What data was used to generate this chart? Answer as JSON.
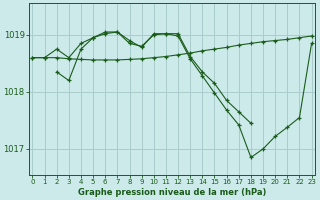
{
  "title": "Graphe pression niveau de la mer (hPa)",
  "bg_color": "#cceaea",
  "grid_color": "#aacccc",
  "line_color": "#1a5c1a",
  "x_ticks": [
    0,
    1,
    2,
    3,
    4,
    5,
    6,
    7,
    8,
    9,
    10,
    11,
    12,
    13,
    14,
    15,
    16,
    17,
    18,
    19,
    20,
    21,
    22,
    23
  ],
  "y_ticks": [
    1017,
    1018,
    1019
  ],
  "ylim": [
    1016.55,
    1019.55
  ],
  "xlim": [
    -0.3,
    23.3
  ],
  "series1_x": [
    0,
    1,
    2,
    3,
    4,
    5,
    6,
    7,
    8,
    9,
    10,
    11,
    12,
    13,
    14,
    15,
    16,
    17,
    18
  ],
  "series1_y": [
    1018.6,
    1018.6,
    1018.75,
    1018.6,
    1018.85,
    1018.95,
    1019.05,
    1019.05,
    1018.85,
    1018.8,
    1019.0,
    1019.02,
    1019.02,
    1018.62,
    1018.35,
    1018.15,
    1017.85,
    1017.65,
    1017.45
  ],
  "series2_x": [
    0,
    1,
    2,
    3,
    4,
    5,
    6,
    7,
    8,
    9,
    10,
    11,
    12,
    13,
    14,
    15,
    16,
    17,
    18,
    19,
    20,
    21,
    22,
    23
  ],
  "series2_y": [
    1018.6,
    1018.6,
    1018.6,
    1018.58,
    1018.57,
    1018.56,
    1018.56,
    1018.56,
    1018.57,
    1018.58,
    1018.6,
    1018.62,
    1018.65,
    1018.68,
    1018.72,
    1018.75,
    1018.78,
    1018.82,
    1018.85,
    1018.88,
    1018.9,
    1018.92,
    1018.95,
    1018.98
  ],
  "series3_x": [
    2,
    3,
    4,
    5,
    6,
    7,
    8,
    9,
    10,
    11,
    12,
    13,
    14,
    15,
    16,
    17,
    18,
    19,
    20,
    21,
    22,
    23
  ],
  "series3_y": [
    1018.35,
    1018.2,
    1018.75,
    1018.95,
    1019.02,
    1019.05,
    1018.9,
    1018.78,
    1019.02,
    1019.02,
    1018.98,
    1018.58,
    1018.28,
    1017.98,
    1017.68,
    1017.42,
    1016.85,
    1017.0,
    1017.22,
    1017.38,
    1017.55,
    1018.85
  ]
}
